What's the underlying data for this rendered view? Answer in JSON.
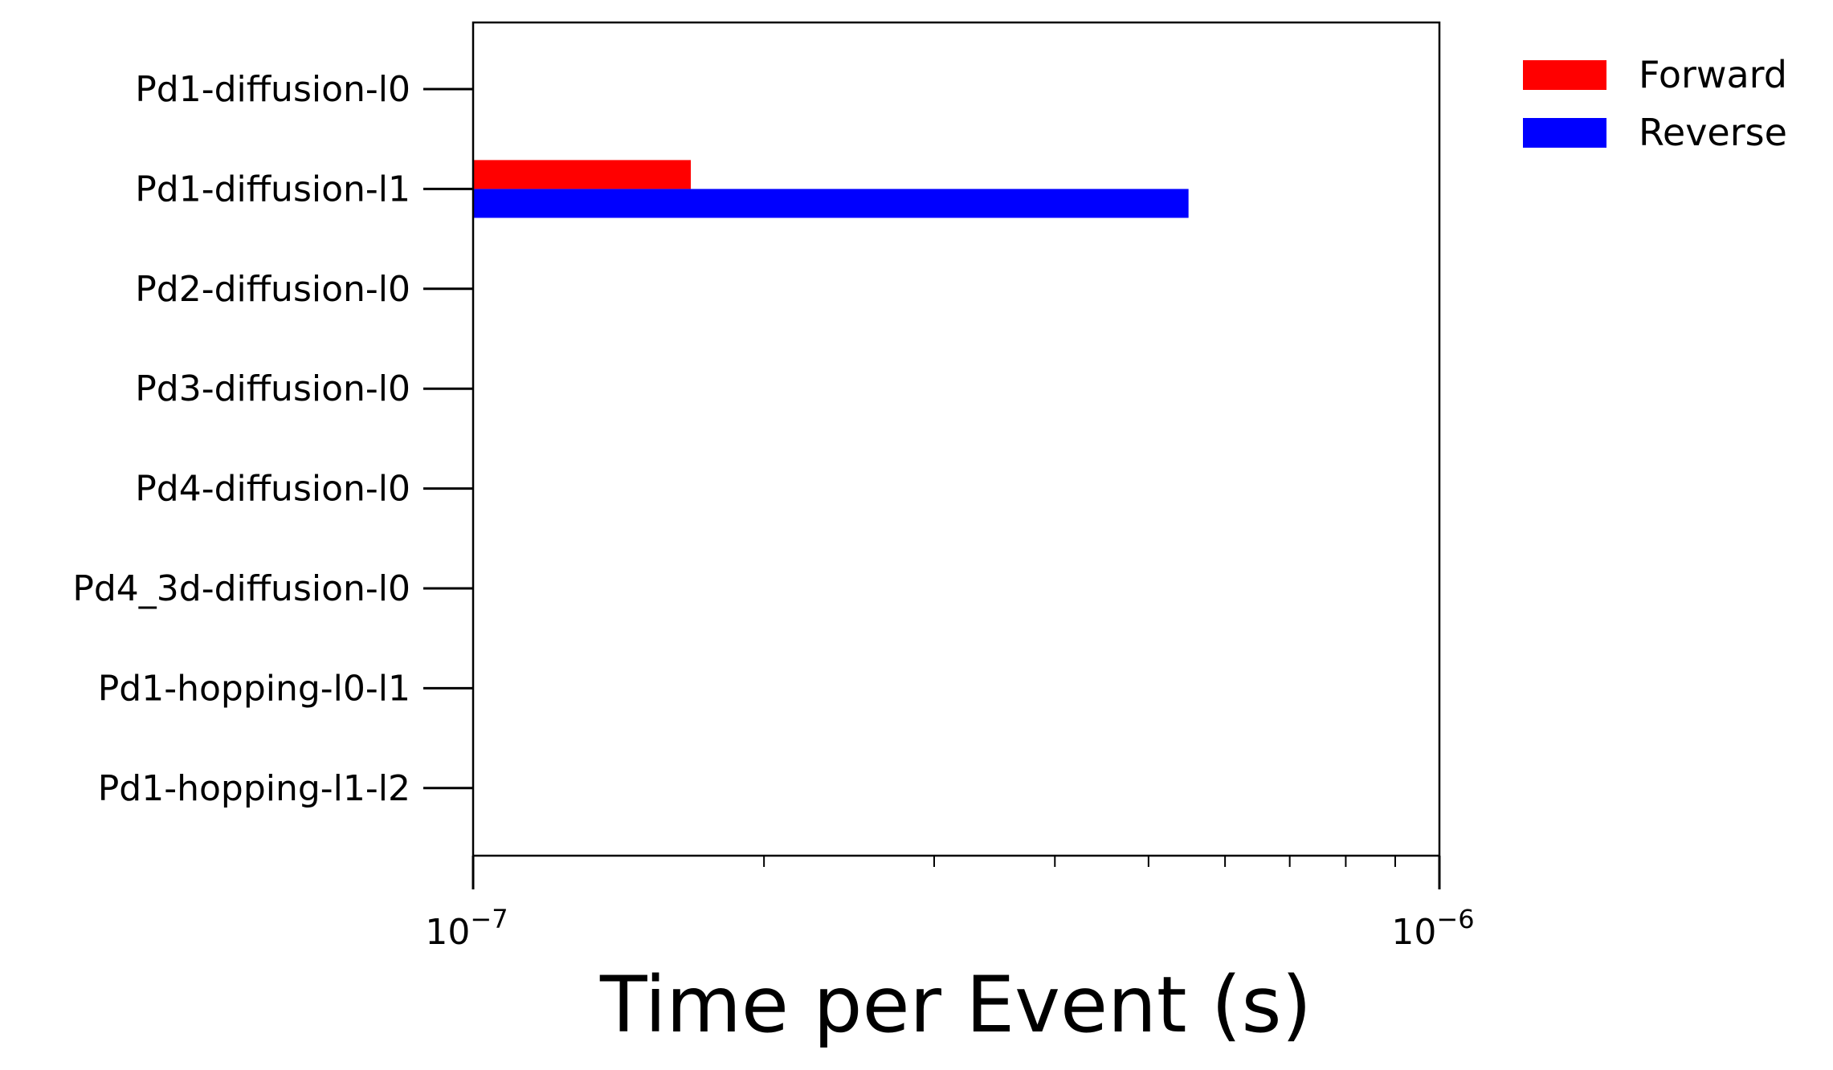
{
  "chart_data": {
    "type": "bar",
    "orientation": "horizontal",
    "title": "",
    "xlabel": "Time per Event (s)",
    "ylabel": "",
    "xscale": "log",
    "xlim": [
      1e-07,
      1e-06
    ],
    "xticks": [
      {
        "base": "10",
        "exp": "−7",
        "value": 1e-07
      },
      {
        "base": "10",
        "exp": "−6",
        "value": 1e-06
      }
    ],
    "categories": [
      "Pd1-diffusion-l0",
      "Pd1-diffusion-l1",
      "Pd2-diffusion-l0",
      "Pd3-diffusion-l0",
      "Pd4-diffusion-l0",
      "Pd4_3d-diffusion-l0",
      "Pd1-hopping-l0-l1",
      "Pd1-hopping-l1-l2"
    ],
    "series": [
      {
        "name": "Forward",
        "color": "#ff0000",
        "values": [
          null,
          1.68e-07,
          null,
          null,
          null,
          null,
          null,
          null
        ]
      },
      {
        "name": "Reverse",
        "color": "#0000ff",
        "values": [
          null,
          5.5e-07,
          null,
          null,
          null,
          null,
          null,
          null
        ]
      }
    ],
    "legend": "outside-top-right",
    "grid": false
  }
}
